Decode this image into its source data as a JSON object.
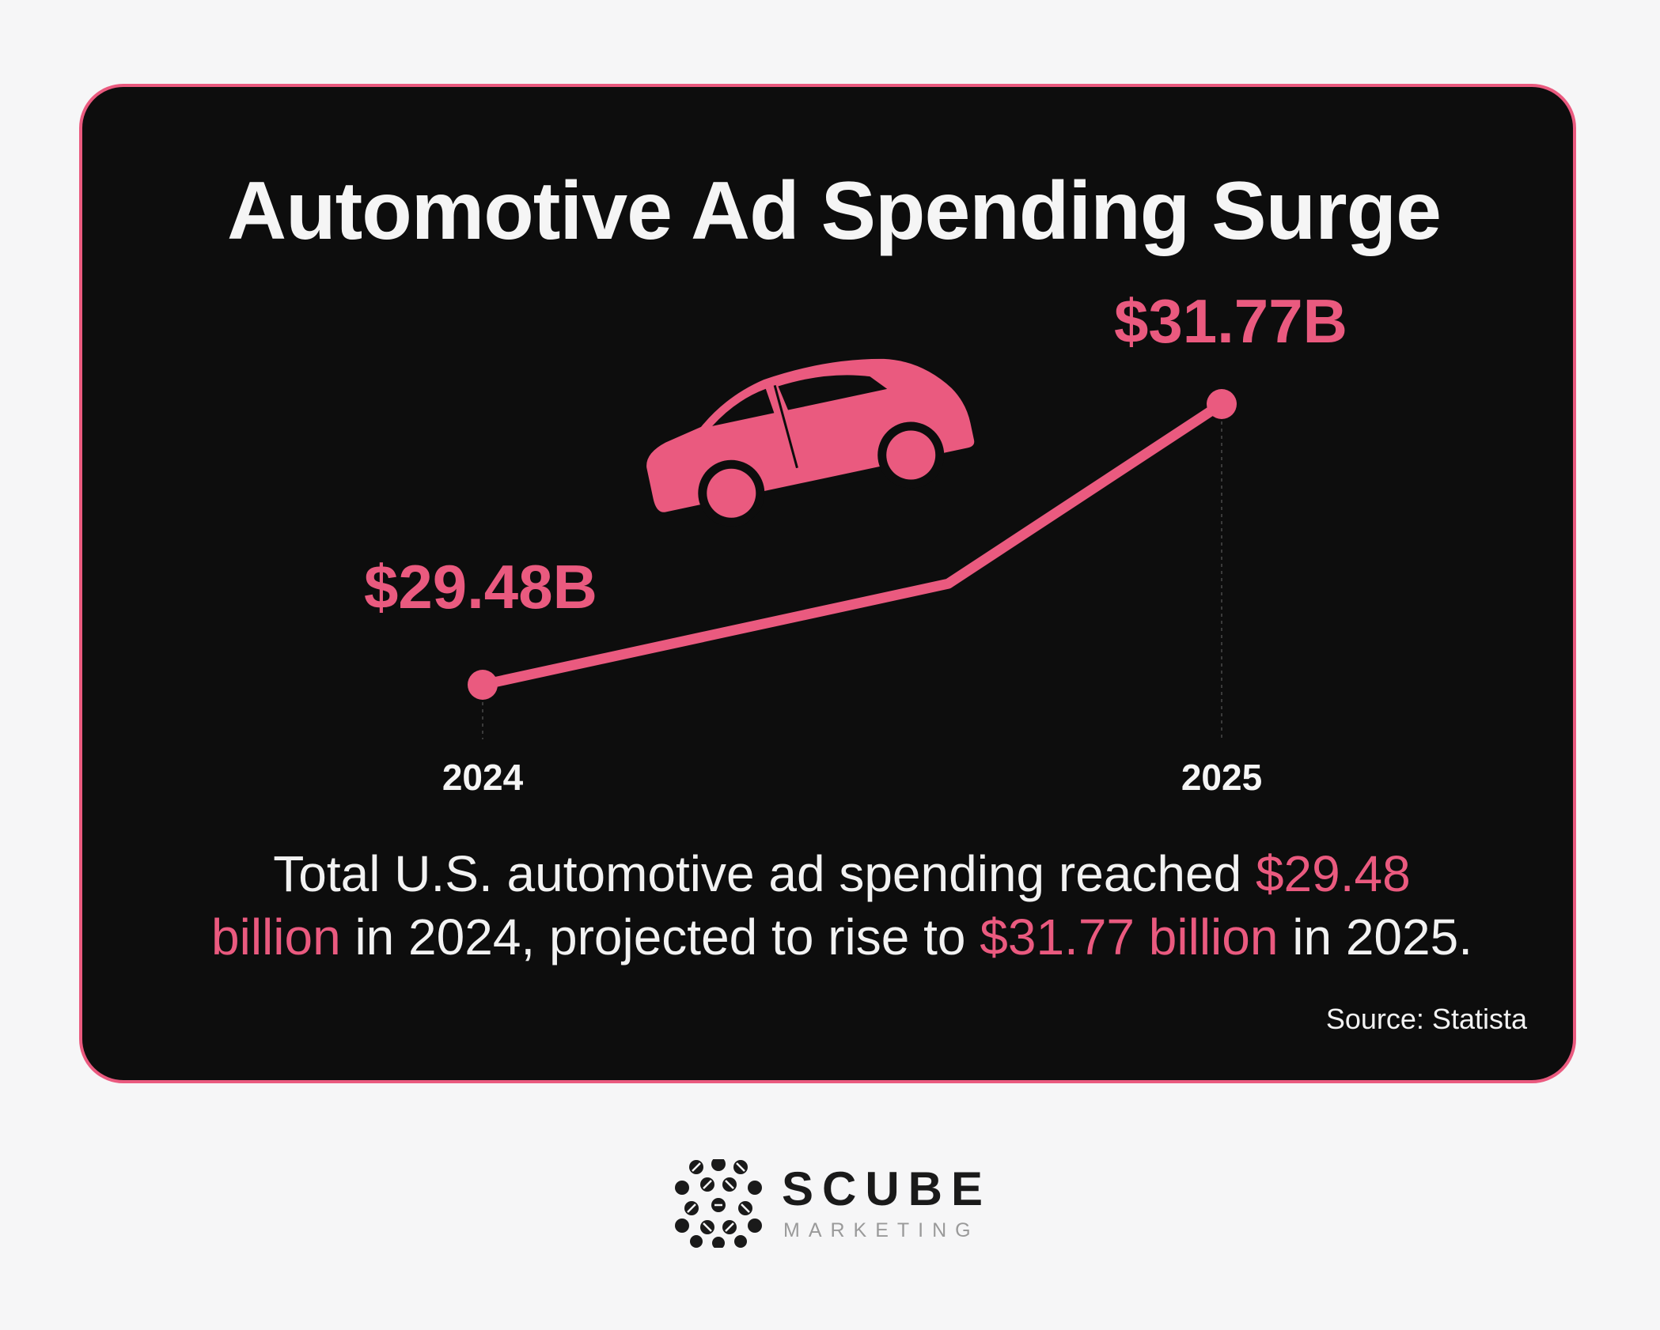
{
  "card": {
    "title": "Automotive Ad Spending Surge",
    "caption": {
      "part1": "Total U.S. automotive ad spending reached ",
      "highlight1": "$29.48 billion",
      "part2": " in 2024, projected to rise to ",
      "highlight2": "$31.77 billion",
      "part3": " in 2025."
    },
    "source": "Source: Statista"
  },
  "chart_data": {
    "type": "line",
    "title": "Automotive Ad Spending Surge",
    "categories": [
      "2024",
      "2025"
    ],
    "series": [
      {
        "values": [
          29.48,
          31.77
        ]
      }
    ],
    "data_labels": [
      "$29.48B",
      "$31.77B"
    ],
    "units": "USD billions",
    "grid": false,
    "legend": "none",
    "line_color": "#ea5a7f",
    "icon": "car-icon"
  },
  "brand": {
    "name": "SCUBE",
    "tagline": "MARKETING",
    "logo_icon": "scube-logo-icon"
  },
  "colors": {
    "accent": "#ea5a7f",
    "card_background": "#0d0d0d",
    "page_background": "#f6f6f7",
    "text": "#f5f5f5"
  }
}
